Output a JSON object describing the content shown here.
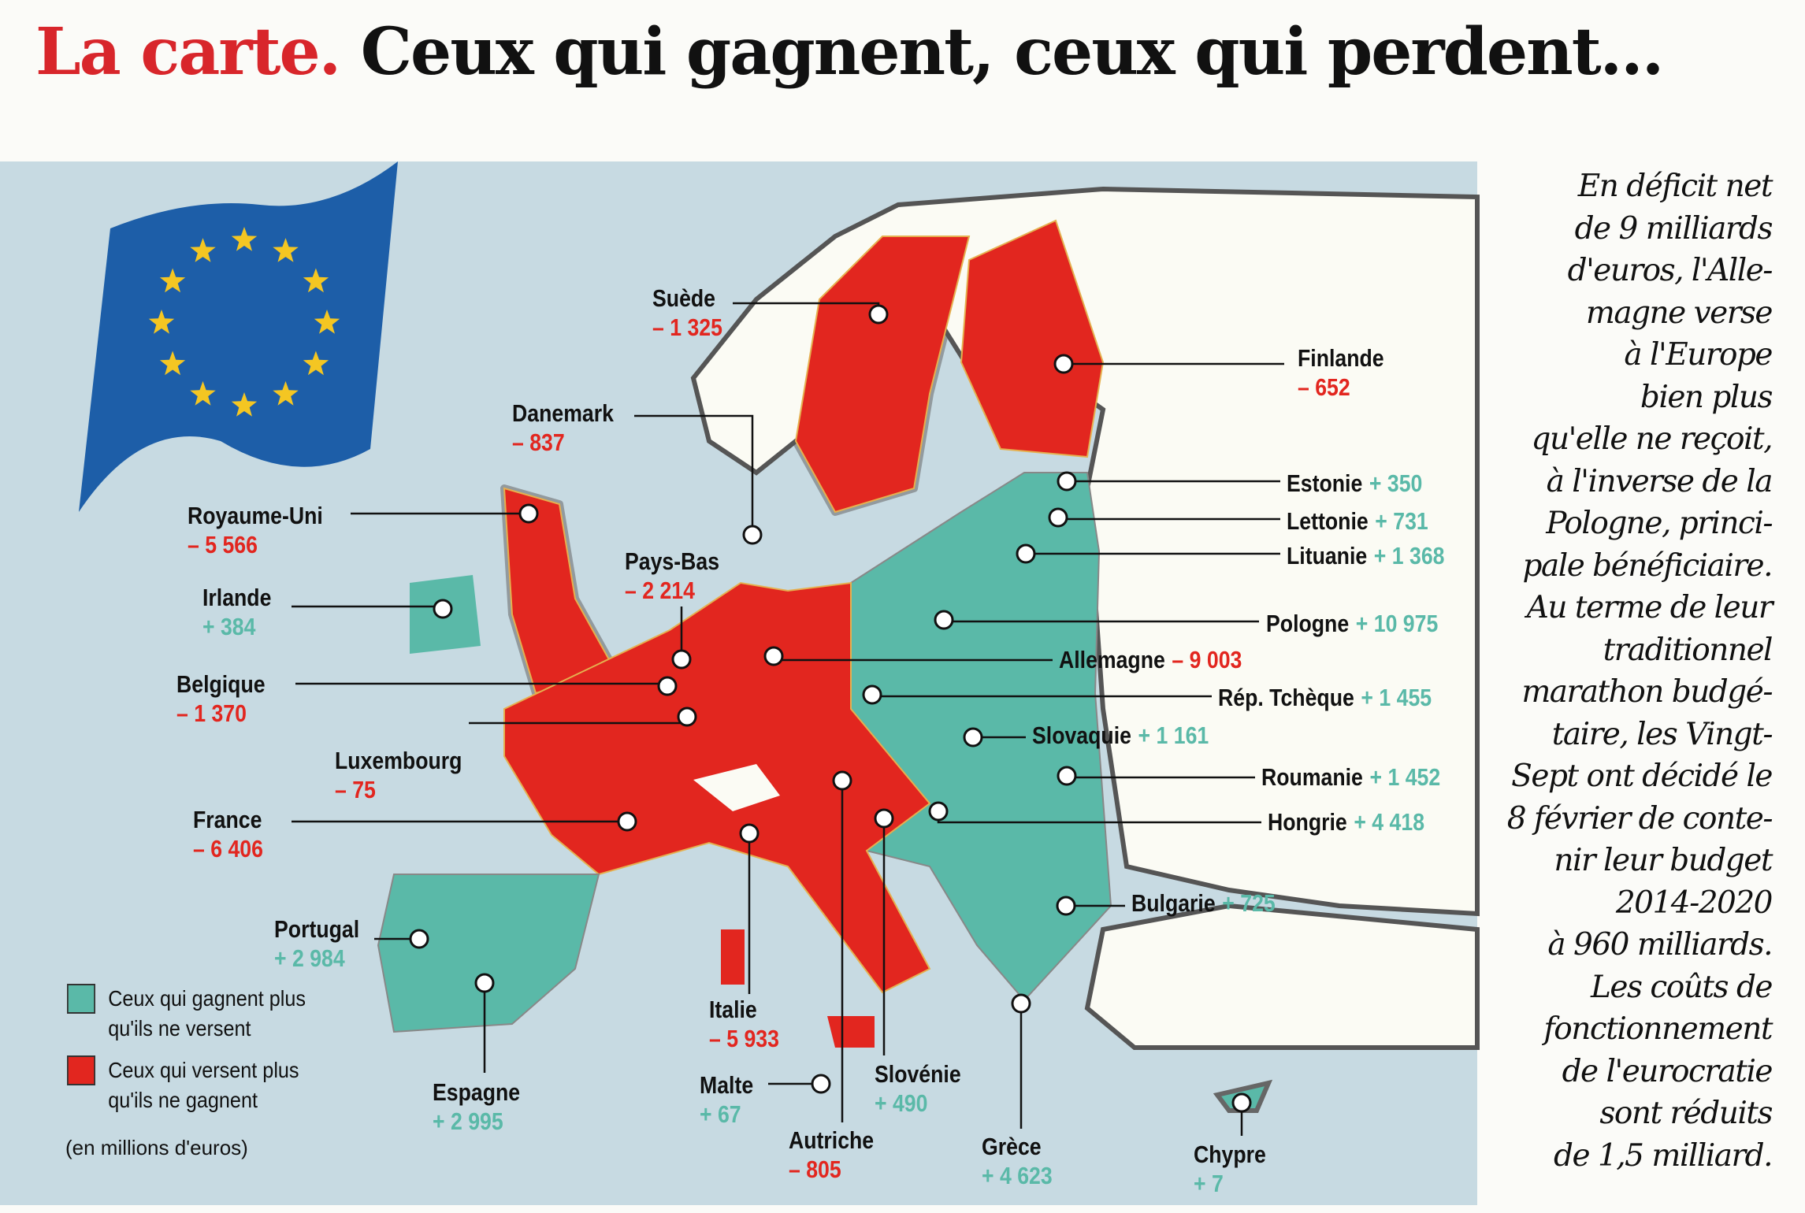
{
  "title": {
    "prefix": "La carte.",
    "main": "Ceux qui gagnent, ceux qui perdent..."
  },
  "colors": {
    "gain": "#5ab9a8",
    "loss": "#e2261f",
    "sea": "#c7dae2",
    "non_eu_land": "#fbfbf4",
    "title_accent": "#d8262b"
  },
  "legend": {
    "gain": {
      "line1": "Ceux qui gagnent plus",
      "line2": "qu'ils ne versent"
    },
    "loss": {
      "line1": "Ceux qui versent plus",
      "line2": "qu'ils ne gagnent"
    },
    "unit": "(en millions d'euros)"
  },
  "countries": [
    {
      "name": "Suède",
      "value": "– 1 325",
      "status": "loss"
    },
    {
      "name": "Finlande",
      "value": "– 652",
      "status": "loss"
    },
    {
      "name": "Danemark",
      "value": "– 837",
      "status": "loss"
    },
    {
      "name": "Royaume-Uni",
      "value": "– 5 566",
      "status": "loss"
    },
    {
      "name": "Irlande",
      "value": "+ 384",
      "status": "gain"
    },
    {
      "name": "Pays-Bas",
      "value": "– 2 214",
      "status": "loss"
    },
    {
      "name": "Belgique",
      "value": "– 1 370",
      "status": "loss"
    },
    {
      "name": "Luxembourg",
      "value": "– 75",
      "status": "loss"
    },
    {
      "name": "France",
      "value": "– 6 406",
      "status": "loss"
    },
    {
      "name": "Portugal",
      "value": "+ 2 984",
      "status": "gain"
    },
    {
      "name": "Espagne",
      "value": "+ 2 995",
      "status": "gain"
    },
    {
      "name": "Italie",
      "value": "– 5 933",
      "status": "loss"
    },
    {
      "name": "Malte",
      "value": "+ 67",
      "status": "gain"
    },
    {
      "name": "Autriche",
      "value": "– 805",
      "status": "loss"
    },
    {
      "name": "Slovénie",
      "value": "+ 490",
      "status": "gain"
    },
    {
      "name": "Grèce",
      "value": "+ 4 623",
      "status": "gain"
    },
    {
      "name": "Chypre",
      "value": "+ 7",
      "status": "gain"
    },
    {
      "name": "Estonie",
      "value": "+ 350",
      "status": "gain"
    },
    {
      "name": "Lettonie",
      "value": "+ 731",
      "status": "gain"
    },
    {
      "name": "Lituanie",
      "value": "+ 1 368",
      "status": "gain"
    },
    {
      "name": "Pologne",
      "value": "+ 10 975",
      "status": "gain"
    },
    {
      "name": "Allemagne",
      "value": "– 9 003",
      "status": "loss"
    },
    {
      "name": "Rép. Tchèque",
      "value": "+ 1 455",
      "status": "gain"
    },
    {
      "name": "Slovaquie",
      "value": "+ 1 161",
      "status": "gain"
    },
    {
      "name": "Roumanie",
      "value": "+ 1 452",
      "status": "gain"
    },
    {
      "name": "Hongrie",
      "value": "+ 4 418",
      "status": "gain"
    },
    {
      "name": "Bulgarie",
      "value": "+ 725",
      "status": "gain"
    }
  ],
  "sidebar_text": [
    "En déficit net",
    "de 9 milliards",
    "d'euros, l'Alle-",
    "magne verse",
    "à l'Europe",
    "bien plus",
    "qu'elle ne reçoit,",
    "à l'inverse de la",
    "Pologne, princi-",
    "pale bénéficiaire.",
    "Au terme de leur",
    "traditionnel",
    "marathon budgé-",
    "taire, les Vingt-",
    "Sept ont décidé le",
    "8 février de conte-",
    "nir leur budget",
    "2014-2020",
    "à 960 milliards.",
    "Les coûts de",
    "fonctionnement",
    "de l'eurocratie",
    "sont réduits",
    "de 1,5 milliard."
  ]
}
